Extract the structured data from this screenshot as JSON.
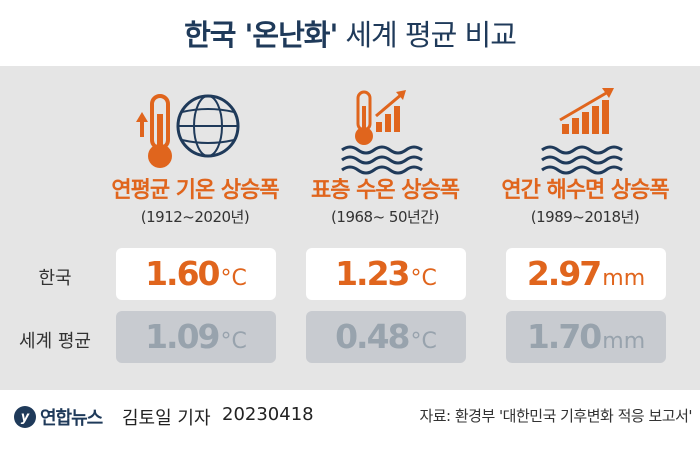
{
  "title": {
    "bold": "한국 '온난화'",
    "rest": "세계 평균 비교"
  },
  "row_labels": {
    "korea": "한국",
    "world": "세계 평균"
  },
  "chart_data": {
    "type": "table",
    "columns": [
      {
        "label": "연평균 기온 상승폭",
        "period": "(1912~2020년)",
        "unit": "°C",
        "korea": "1.60",
        "world": "1.09",
        "icon": "thermometer-globe-icon"
      },
      {
        "label": "표층 수온 상승폭",
        "period": "(1968~ 50년간)",
        "unit": "°C",
        "korea": "1.23",
        "world": "0.48",
        "icon": "thermometer-waves-icon"
      },
      {
        "label": "연간 해수면 상승폭",
        "period": "(1989~2018년)",
        "unit": "mm",
        "korea": "2.97",
        "world": "1.70",
        "icon": "rising-bars-waves-icon"
      }
    ]
  },
  "footer": {
    "logo_mark": "y",
    "brand": "연합뉴스",
    "reporter": "김토일 기자",
    "date": "20230418",
    "source": "자료: 환경부 '대한민국 기후변화 적응 보고서'"
  },
  "colors": {
    "accent": "#e0651d",
    "navy": "#1f3a5a",
    "panel": "#e5e5e5",
    "world_box": "#c8cbd0",
    "world_text": "#98a3ad"
  }
}
